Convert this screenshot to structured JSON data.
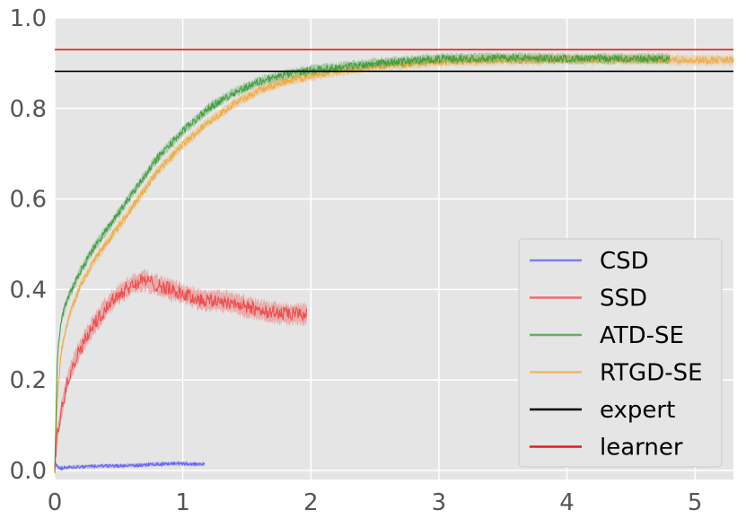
{
  "chart_data": {
    "type": "line",
    "title": "",
    "xlabel": "",
    "ylabel": "",
    "xlim": [
      0,
      5.3
    ],
    "ylim": [
      -0.02,
      1.0
    ],
    "x_ticks": [
      0,
      1,
      2,
      3,
      4,
      5
    ],
    "y_ticks": [
      0.0,
      0.2,
      0.4,
      0.6,
      0.8,
      1.0
    ],
    "x_tick_labels": [
      "0",
      "1",
      "2",
      "3",
      "4",
      "5"
    ],
    "y_tick_labels": [
      "0.0",
      "0.2",
      "0.4",
      "0.6",
      "0.8",
      "1.0"
    ],
    "grid": true,
    "background": "#e5e5e5",
    "legend_position": "lower-right",
    "series": [
      {
        "name": "CSD",
        "color": "#5b5bf0",
        "x": [
          0,
          0.02,
          0.05,
          0.1,
          0.2,
          0.3,
          0.4,
          0.5,
          0.6,
          0.7,
          0.8,
          0.9,
          1.0,
          1.1,
          1.17
        ],
        "y": [
          0.02,
          0.008,
          0.005,
          0.007,
          0.008,
          0.009,
          0.01,
          0.01,
          0.011,
          0.012,
          0.014,
          0.015,
          0.015,
          0.014,
          0.014
        ],
        "noise": 0.004
      },
      {
        "name": "SSD",
        "color": "#ee4444",
        "x": [
          0,
          0.02,
          0.05,
          0.1,
          0.15,
          0.2,
          0.3,
          0.4,
          0.5,
          0.6,
          0.7,
          0.8,
          0.9,
          1.0,
          1.1,
          1.2,
          1.3,
          1.4,
          1.5,
          1.6,
          1.7,
          1.8,
          1.9,
          1.97
        ],
        "y": [
          0.0,
          0.08,
          0.13,
          0.2,
          0.24,
          0.27,
          0.32,
          0.36,
          0.39,
          0.41,
          0.42,
          0.41,
          0.4,
          0.39,
          0.38,
          0.375,
          0.375,
          0.37,
          0.36,
          0.355,
          0.35,
          0.345,
          0.345,
          0.345
        ],
        "noise": 0.02
      },
      {
        "name": "ATD-SE",
        "color": "#3a9a3a",
        "x": [
          0,
          0.02,
          0.05,
          0.1,
          0.2,
          0.3,
          0.4,
          0.5,
          0.6,
          0.7,
          0.8,
          0.9,
          1.0,
          1.2,
          1.4,
          1.6,
          1.8,
          2.0,
          2.2,
          2.5,
          3.0,
          3.5,
          4.0,
          4.5,
          4.8
        ],
        "y": [
          0.0,
          0.25,
          0.33,
          0.38,
          0.44,
          0.49,
          0.53,
          0.57,
          0.61,
          0.65,
          0.69,
          0.72,
          0.75,
          0.8,
          0.835,
          0.86,
          0.875,
          0.885,
          0.89,
          0.9,
          0.91,
          0.912,
          0.91,
          0.91,
          0.91
        ],
        "noise": 0.01
      },
      {
        "name": "RTGD-SE",
        "color": "#f2a83a",
        "x": [
          0,
          0.02,
          0.05,
          0.1,
          0.2,
          0.3,
          0.4,
          0.5,
          0.6,
          0.7,
          0.8,
          0.9,
          1.0,
          1.2,
          1.4,
          1.6,
          1.8,
          2.0,
          2.2,
          2.5,
          3.0,
          3.5,
          4.0,
          4.5,
          5.0,
          5.3
        ],
        "y": [
          0.0,
          0.16,
          0.26,
          0.33,
          0.41,
          0.46,
          0.5,
          0.54,
          0.58,
          0.62,
          0.66,
          0.69,
          0.72,
          0.77,
          0.81,
          0.84,
          0.86,
          0.872,
          0.882,
          0.893,
          0.903,
          0.907,
          0.908,
          0.908,
          0.907,
          0.907
        ],
        "noise": 0.01
      },
      {
        "name": "expert",
        "color": "#000000",
        "x": [
          0,
          5.3
        ],
        "y": [
          0.882,
          0.882
        ],
        "noise": 0
      },
      {
        "name": "learner",
        "color": "#e81a1a",
        "x": [
          0,
          5.3
        ],
        "y": [
          0.93,
          0.93
        ],
        "noise": 0
      }
    ]
  }
}
